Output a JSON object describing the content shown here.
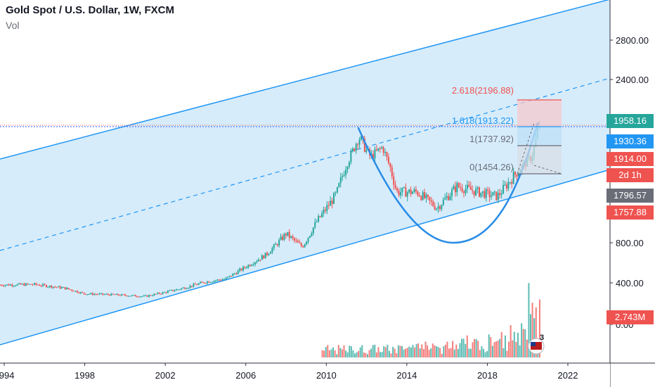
{
  "header": {
    "title": "Gold Spot / U.S. Dollar, 1W, FXCM",
    "vol_label": "Vol"
  },
  "colors": {
    "channel_fill": "#d6ecfb",
    "channel_line": "#2196f3",
    "cup_line": "#2a8de6",
    "candle_up": "#26a69a",
    "candle_down": "#ef5350",
    "fib_red": "#ef5350",
    "fib_blue": "#2196f3"
  },
  "price_tags": [
    {
      "text": "1958.16",
      "color": "#26a69a"
    },
    {
      "text": "1930.36",
      "color": "#2196f3"
    },
    {
      "text": "1914.00",
      "color": "#ef5350"
    },
    {
      "text": "2d 1h",
      "color": "#ef5350"
    },
    {
      "text": "1796.57",
      "color": "#6a6d78"
    },
    {
      "text": "1757.88",
      "color": "#ef5350"
    },
    {
      "text": "2.743M",
      "color": "#ef5350"
    }
  ],
  "fib_levels": [
    {
      "text": "2.618(2196.88)",
      "color": "#ef5350"
    },
    {
      "text": "1.618(1913.22)",
      "color": "#2196f3"
    },
    {
      "text": "1(1737.92)",
      "color": "#6a6d78"
    },
    {
      "text": "0(1454.26)",
      "color": "#6a6d78"
    }
  ],
  "events_badge": "3",
  "chart_data": {
    "type": "line",
    "title": "Gold Spot / U.S. Dollar, 1W, FXCM",
    "xlabel": "",
    "ylabel": "",
    "x_ticks": [
      "1994",
      "1998",
      "2002",
      "2006",
      "2010",
      "2014",
      "2018",
      "2022"
    ],
    "y_ticks": [
      "2800.00",
      "2400.00",
      "800.00",
      "400.00",
      "0.00"
    ],
    "xlim": [
      1993.8,
      2024.4
    ],
    "series": [
      {
        "x": [
          1993.8,
          1995.5,
          1997,
          1998,
          1999.5,
          2001,
          2002,
          2003,
          2004,
          2005,
          2006,
          2007,
          2008,
          2008.8,
          2009.5,
          2010.5,
          2011.6,
          2012.2,
          2012.8,
          2013.5,
          2014.5,
          2015.5,
          2016.5,
          2017.5,
          2018.5,
          2019,
          2019.8,
          2020.2,
          2020.6
        ],
        "y": [
          380,
          385,
          350,
          295,
          285,
          270,
          310,
          355,
          410,
          440,
          560,
          680,
          880,
          760,
          980,
          1230,
          1830,
          1600,
          1720,
          1250,
          1250,
          1110,
          1300,
          1250,
          1210,
          1320,
          1500,
          1600,
          1958
        ]
      }
    ],
    "volume": {
      "label": "Vol",
      "last_value": "2.743M"
    },
    "annotations": [
      "2.618(2196.88)",
      "1.618(1913.22)",
      "1(1737.92)",
      "0(1454.26)"
    ],
    "grid": false,
    "legend": "top-left"
  }
}
